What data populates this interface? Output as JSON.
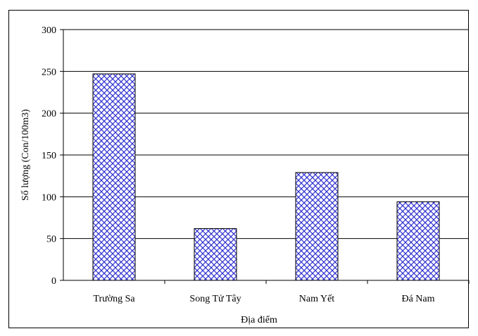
{
  "chart_data": {
    "type": "bar",
    "categories": [
      "Trường Sa",
      "Song Tử Tây",
      "Nam Yết",
      "Đá Nam"
    ],
    "values": [
      247,
      62,
      129,
      94
    ],
    "xlabel": "Địa điểm",
    "ylabel": "Số lượng (Con/100m3)",
    "ylim": [
      0,
      300
    ],
    "yticks": [
      "0",
      "50",
      "100",
      "150",
      "200",
      "250",
      "300"
    ],
    "grid": true,
    "bar_fill": "crosshatch",
    "colors": {
      "hatch": "#2f2fd0",
      "bar_background": "#ffffff",
      "bar_border": "#000000",
      "gridline": "#000000"
    }
  }
}
